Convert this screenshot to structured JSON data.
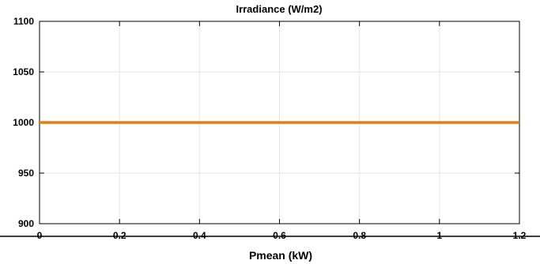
{
  "chart_data": {
    "type": "line",
    "title": "Irradiance (W/m2)",
    "xlabel": "Pmean (kW)",
    "ylabel": "",
    "xlim": [
      0,
      1.2
    ],
    "ylim": [
      900,
      1100
    ],
    "x_ticks": [
      0,
      0.2,
      0.4,
      0.6,
      0.8,
      1,
      1.2
    ],
    "x_tick_labels": [
      "0",
      "0.2",
      "0.4",
      "0.6",
      "0.8",
      "1",
      "1.2"
    ],
    "y_ticks": [
      900,
      950,
      1000,
      1050,
      1100
    ],
    "y_tick_labels": [
      "900",
      "950",
      "1000",
      "1050",
      "1100"
    ],
    "grid": true,
    "series": [
      {
        "x": [
          0,
          1.2
        ],
        "y": [
          1000,
          1000
        ],
        "color": "#e87d0d"
      }
    ]
  }
}
